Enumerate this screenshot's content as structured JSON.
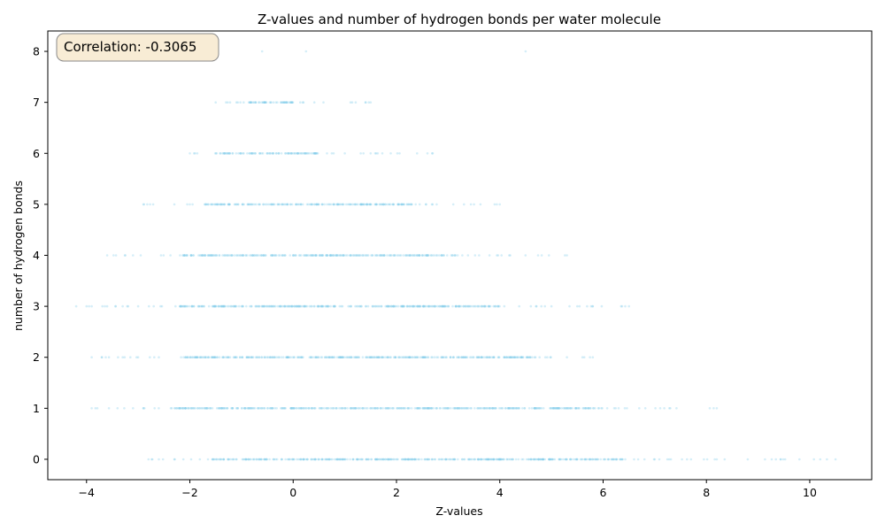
{
  "chart_data": {
    "type": "scatter",
    "title": "Z-values and number of hydrogen bonds per water molecule",
    "xlabel": "Z-values",
    "ylabel": "number of hydrogen bonds",
    "xlim": [
      -4.75,
      11.2
    ],
    "ylim": [
      -0.4,
      8.4
    ],
    "xticks": [
      -4,
      -2,
      0,
      2,
      4,
      6,
      8,
      10
    ],
    "yticks": [
      0,
      1,
      2,
      3,
      4,
      5,
      6,
      7,
      8
    ],
    "grid": false,
    "point_color": "#87CEEB",
    "point_alpha": 0.35,
    "annotation": "Correlation: -0.3065",
    "annotation_box_color": "#F8ECD5",
    "series": [
      {
        "bands": [
          {
            "y": 0,
            "min": -2.9,
            "max": 10.5,
            "dense_min": -1.6,
            "dense_max": 6.4,
            "outliers": [
              -2.8,
              -2.6,
              -2.3,
              6.6,
              6.8,
              7.0,
              8.2,
              8.8,
              10.5
            ]
          },
          {
            "y": 1,
            "min": -3.9,
            "max": 8.2,
            "dense_min": -2.3,
            "dense_max": 6.0,
            "outliers": [
              -3.9,
              -3.4,
              -3.1,
              -2.9,
              6.3,
              6.7,
              7.3,
              8.2
            ]
          },
          {
            "y": 2,
            "min": -3.9,
            "max": 5.8,
            "dense_min": -2.1,
            "dense_max": 4.8,
            "outliers": [
              -3.9,
              -3.7,
              -3.3,
              -3.0,
              -2.6,
              5.3,
              5.6,
              5.8
            ]
          },
          {
            "y": 3,
            "min": -4.2,
            "max": 6.5,
            "dense_min": -2.2,
            "dense_max": 4.0,
            "outliers": [
              -4.2,
              -3.9,
              -3.6,
              -3.3,
              -3.0,
              -2.7,
              4.6,
              5.0,
              5.5,
              5.8,
              6.5
            ]
          },
          {
            "y": 4,
            "min": -3.6,
            "max": 5.3,
            "dense_min": -2.2,
            "dense_max": 3.2,
            "outliers": [
              -3.6,
              -3.1,
              3.6,
              3.8,
              5.3
            ]
          },
          {
            "y": 5,
            "min": -2.9,
            "max": 4.0,
            "dense_min": -1.7,
            "dense_max": 2.3,
            "outliers": [
              -2.9,
              -2.3,
              -2.0,
              2.7,
              3.1,
              3.5,
              3.9,
              4.0
            ]
          },
          {
            "y": 6,
            "min": -2.0,
            "max": 2.7,
            "dense_min": -1.5,
            "dense_max": 0.5,
            "outliers": [
              -2.0,
              -1.9,
              1.0,
              1.5,
              2.4,
              2.6,
              2.7
            ]
          },
          {
            "y": 7,
            "min": -1.5,
            "max": 1.5,
            "dense_min": -1.1,
            "dense_max": 0.0,
            "outliers": [
              -1.5,
              -1.3,
              0.2,
              1.4,
              1.5
            ]
          },
          {
            "y": 8,
            "min": -0.6,
            "max": 4.5,
            "dense_min": 0,
            "dense_max": 0,
            "outliers": [
              -0.6,
              0.25,
              4.5
            ]
          }
        ]
      }
    ]
  }
}
